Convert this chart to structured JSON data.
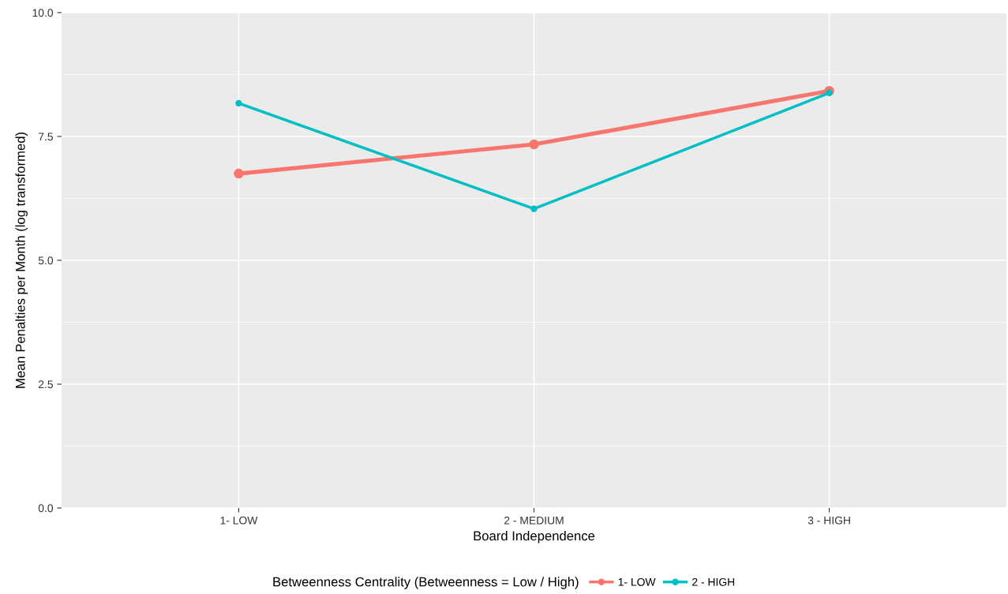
{
  "chart_data": {
    "type": "line",
    "xlabel": "Board Independence",
    "ylabel": "Mean Penalties per Month (log transformed)",
    "legend_title": "Betweenness Centrality (Betweenness = Low / High)",
    "categories": [
      "1- LOW",
      "2 - MEDIUM",
      "3 - HIGH"
    ],
    "series": [
      {
        "name": "1- LOW",
        "color": "#f8766d",
        "values": [
          6.75,
          7.34,
          8.42
        ]
      },
      {
        "name": "2 - HIGH",
        "color": "#00bfc4",
        "values": [
          8.17,
          6.04,
          8.38
        ]
      }
    ],
    "ylim": [
      0,
      10
    ],
    "yticks": [
      {
        "value": 0,
        "label": "0.0"
      },
      {
        "value": 2.5,
        "label": "2.5"
      },
      {
        "value": 5,
        "label": "5.0"
      },
      {
        "value": 7.5,
        "label": "7.5"
      },
      {
        "value": 10,
        "label": "10.0"
      }
    ],
    "grid": true,
    "legend": "bottom",
    "marker": "circle",
    "line_style": "solid"
  }
}
